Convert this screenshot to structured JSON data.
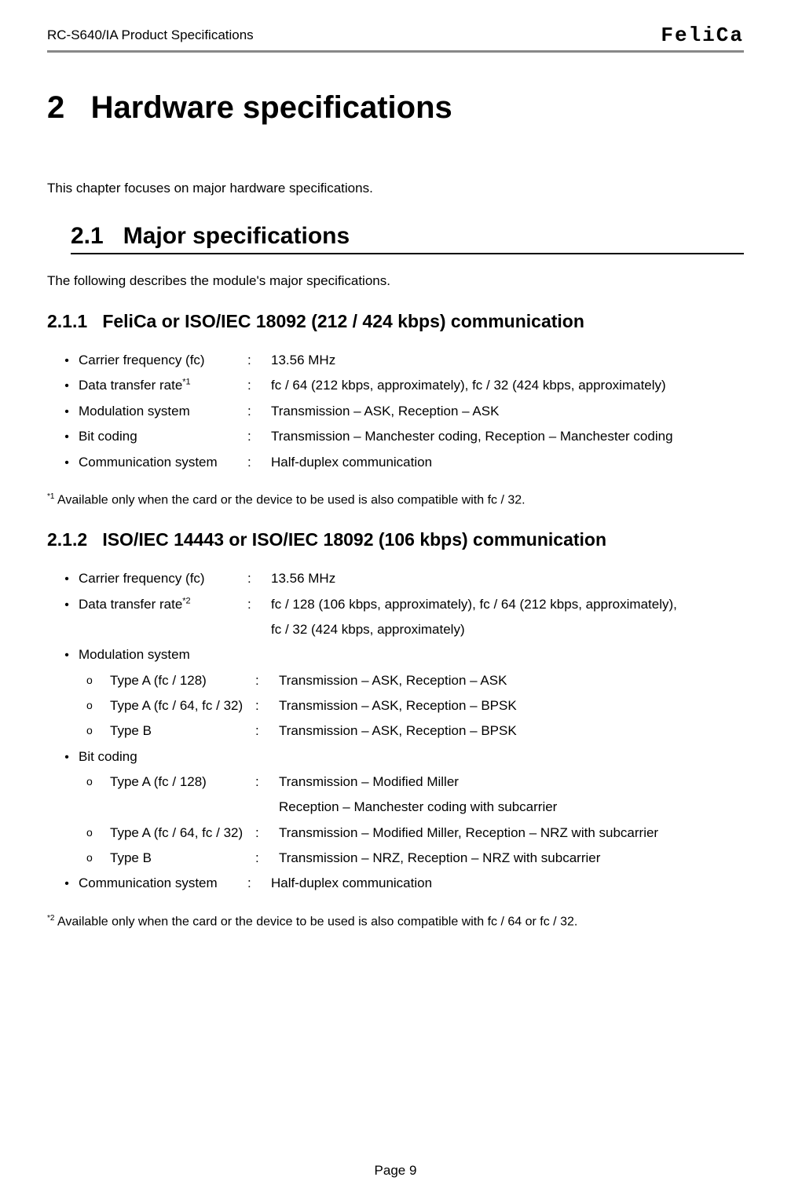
{
  "header": {
    "doc_title": "RC-S640/IA Product Specifications",
    "logo_text": "FeliCa"
  },
  "h1": {
    "number": "2",
    "title": "Hardware specifications"
  },
  "intro": "This chapter focuses on major hardware specifications.",
  "h2": {
    "number": "2.1",
    "title": "Major specifications"
  },
  "desc": "The following describes the module's major specifications.",
  "sec1": {
    "heading_number": "2.1.1",
    "heading_title": "FeliCa or ISO/IEC 18092 (212 / 424 kbps) communication",
    "rows": [
      {
        "label": "Carrier frequency (fc)",
        "sup": "",
        "value": "13.56 MHz"
      },
      {
        "label": "Data transfer rate",
        "sup": "*1",
        "value": "fc / 64 (212 kbps, approximately), fc / 32 (424 kbps, approximately)"
      },
      {
        "label": "Modulation system",
        "sup": "",
        "value": "Transmission – ASK, Reception – ASK"
      },
      {
        "label": "Bit coding",
        "sup": "",
        "value": "Transmission – Manchester coding, Reception – Manchester coding"
      },
      {
        "label": "Communication system",
        "sup": "",
        "value": "Half-duplex communication"
      }
    ],
    "footnote_sup": "*1",
    "footnote_text": " Available only when the card or the device to be used is also compatible with fc / 32."
  },
  "sec2": {
    "heading_number": "2.1.2",
    "heading_title": "ISO/IEC 14443 or ISO/IEC 18092 (106 kbps) communication",
    "row_carrier": {
      "label": "Carrier frequency (fc)",
      "value": "13.56 MHz"
    },
    "row_rate": {
      "label": "Data transfer rate",
      "sup": "*2",
      "value1": "fc / 128 (106 kbps, approximately), fc / 64 (212 kbps, approximately),",
      "value2": "fc / 32 (424 kbps, approximately)"
    },
    "mod_label": "Modulation system",
    "mod_rows": [
      {
        "label": "Type A (fc / 128)",
        "value": "Transmission – ASK, Reception – ASK"
      },
      {
        "label": "Type A (fc / 64, fc / 32)",
        "value": "Transmission – ASK, Reception – BPSK"
      },
      {
        "label": "Type B",
        "value": "Transmission – ASK, Reception – BPSK"
      }
    ],
    "bit_label": "Bit coding",
    "bit_rows": [
      {
        "label": "Type A (fc / 128)",
        "value1": "Transmission – Modified Miller",
        "value2": "Reception – Manchester coding with subcarrier"
      },
      {
        "label": "Type A (fc / 64, fc / 32)",
        "value1": "Transmission – Modified Miller,  Reception – NRZ with subcarrier",
        "value2": ""
      },
      {
        "label": "Type B",
        "value1": "Transmission – NRZ, Reception – NRZ with subcarrier",
        "value2": ""
      }
    ],
    "row_comm": {
      "label": "Communication system",
      "value": "Half-duplex communication"
    },
    "footnote_sup": "*2",
    "footnote_text": " Available only when the card or the device to be used is also compatible with fc / 64 or fc / 32."
  },
  "page_number": "Page 9"
}
